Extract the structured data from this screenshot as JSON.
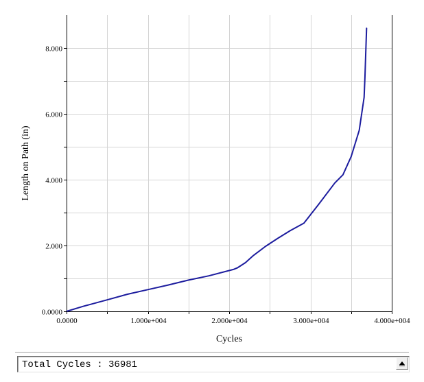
{
  "chart_data": {
    "type": "line",
    "title": "",
    "xlabel": "Cycles",
    "ylabel": "Length on Path (in)",
    "xlim": [
      0,
      40000
    ],
    "ylim": [
      0,
      9
    ],
    "grid": true,
    "x_ticks": [
      0,
      5000,
      10000,
      15000,
      20000,
      25000,
      30000,
      35000,
      40000
    ],
    "y_ticks": [
      0,
      1,
      2,
      3,
      4,
      5,
      6,
      7,
      8
    ],
    "x_tick_labels": [
      "0.0000",
      "",
      "1.000e+004",
      "",
      "2.000e+004",
      "",
      "3.000e+004",
      "",
      "4.000e+004"
    ],
    "y_tick_labels": [
      "0.0000",
      "",
      "2.000",
      "",
      "4.000",
      "",
      "6.000",
      "",
      "8.000"
    ],
    "series_color": "#1c1c9e",
    "series": [
      {
        "x": [
          0,
          2000,
          5000,
          7500,
          10000,
          12500,
          15000,
          17500,
          20600,
          21000,
          22000,
          23000,
          24500,
          26000,
          27500,
          29200,
          31000,
          33000,
          34000,
          35000,
          36000,
          36600,
          36700,
          36900
        ],
        "y": [
          0,
          0.15,
          0.35,
          0.52,
          0.66,
          0.8,
          0.95,
          1.08,
          1.28,
          1.32,
          1.48,
          1.7,
          1.98,
          2.22,
          2.45,
          2.68,
          3.25,
          3.9,
          4.15,
          4.7,
          5.5,
          6.5,
          7.1,
          8.6
        ]
      }
    ]
  },
  "status": {
    "text": "Total Cycles : 36981"
  }
}
